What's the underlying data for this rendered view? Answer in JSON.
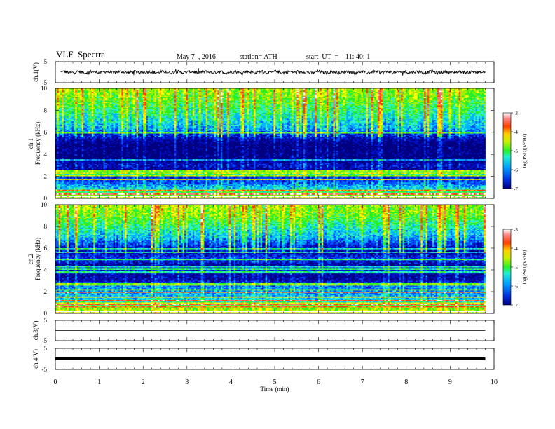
{
  "header": {
    "title": "VLF  Spectra",
    "date": "May 7  , 2016",
    "station": "station= ATH",
    "start": "start  UT  =    11: 40: 1"
  },
  "chart_data": [
    {
      "type": "line",
      "panel": "ch1-waveform",
      "ylabel": "ch.1(V)",
      "ylim": [
        -5,
        5
      ],
      "yticks": [
        "5",
        "-5"
      ],
      "xlim": [
        0,
        10
      ],
      "series": [
        {
          "values_description_ref": "noisy",
          "baseline": 0,
          "amplitude": 0.9
        }
      ],
      "color": "#000000"
    },
    {
      "type": "heatmap",
      "panel": "ch1-spectrogram",
      "ylabel": "ch.1\nFrequency  (kHz)",
      "ylim": [
        0,
        10
      ],
      "yticks": [
        "0",
        "2",
        "4",
        "6",
        "8",
        "10"
      ],
      "xlim": [
        0,
        9.8
      ],
      "colorbar": {
        "label": "log(PSD)(V²/Hz)",
        "range": [
          -7,
          -3
        ],
        "ticks": [
          "-3",
          "-4",
          "-5",
          "-6",
          "-7"
        ]
      },
      "profile_khz": [
        {
          "f": 0.0,
          "v": -4.8
        },
        {
          "f": 0.5,
          "v": -5.2
        },
        {
          "f": 1.0,
          "v": -5.8
        },
        {
          "f": 1.5,
          "v": -6.2
        },
        {
          "f": 2.0,
          "v": -6.4
        },
        {
          "f": 2.5,
          "v": -6.8
        },
        {
          "f": 3.0,
          "v": -6.5
        },
        {
          "f": 3.5,
          "v": -6.9
        },
        {
          "f": 4.0,
          "v": -6.9
        },
        {
          "f": 5.0,
          "v": -6.9
        },
        {
          "f": 5.8,
          "v": -6.3
        },
        {
          "f": 6.2,
          "v": -5.9
        },
        {
          "f": 7.0,
          "v": -5.6
        },
        {
          "f": 8.0,
          "v": -5.3
        },
        {
          "f": 9.0,
          "v": -5.0
        },
        {
          "f": 10.0,
          "v": -4.8
        }
      ]
    },
    {
      "type": "heatmap",
      "panel": "ch2-spectrogram",
      "ylabel": "ch.2\nFrequency  (kHz)",
      "ylim": [
        0,
        10
      ],
      "yticks": [
        "0",
        "2",
        "4",
        "6",
        "8",
        "10"
      ],
      "xlim": [
        0,
        9.8
      ],
      "colorbar": {
        "label": "log(PSD)(V²/Hz)",
        "range": [
          -7,
          -3
        ],
        "ticks": [
          "-3",
          "-4",
          "-5",
          "-6",
          "-7"
        ]
      },
      "profile_khz": [
        {
          "f": 0.0,
          "v": -4.6
        },
        {
          "f": 0.5,
          "v": -5.0
        },
        {
          "f": 1.0,
          "v": -5.5
        },
        {
          "f": 1.5,
          "v": -5.8
        },
        {
          "f": 2.0,
          "v": -5.9
        },
        {
          "f": 2.5,
          "v": -6.0
        },
        {
          "f": 3.0,
          "v": -6.6
        },
        {
          "f": 3.5,
          "v": -6.7
        },
        {
          "f": 4.0,
          "v": -6.4
        },
        {
          "f": 4.5,
          "v": -6.7
        },
        {
          "f": 5.0,
          "v": -6.2
        },
        {
          "f": 5.5,
          "v": -6.6
        },
        {
          "f": 6.0,
          "v": -6.5
        },
        {
          "f": 7.0,
          "v": -5.8
        },
        {
          "f": 8.0,
          "v": -5.4
        },
        {
          "f": 9.0,
          "v": -5.0
        },
        {
          "f": 10.0,
          "v": -4.8
        }
      ]
    },
    {
      "type": "line",
      "panel": "ch3-waveform",
      "ylabel": "ch.3(V)",
      "ylim": [
        -5,
        5
      ],
      "yticks": [
        "5",
        "-5"
      ],
      "xlim": [
        0,
        10
      ],
      "series": [
        {
          "baseline": 0
        }
      ],
      "color": "#000000"
    },
    {
      "type": "line",
      "panel": "ch4-waveform",
      "ylabel": "ch.4(V)",
      "ylim": [
        -5,
        5
      ],
      "yticks": [
        "5",
        "-5"
      ],
      "xlim": [
        0,
        10
      ],
      "series": [
        {
          "baseline": 0
        }
      ],
      "color": "#000000"
    }
  ],
  "xaxis": {
    "label": "Time  (min)",
    "ticks": [
      "0",
      "1",
      "2",
      "3",
      "4",
      "5",
      "6",
      "7",
      "8",
      "9",
      "10"
    ],
    "range": [
      0,
      10
    ]
  },
  "colormap": [
    "#000080",
    "#0010c8",
    "#0050ff",
    "#00b4ff",
    "#2ef0c8",
    "#28f028",
    "#a0f000",
    "#ffff00",
    "#ffb400",
    "#ff4000",
    "#ff7070",
    "#ffffff"
  ]
}
